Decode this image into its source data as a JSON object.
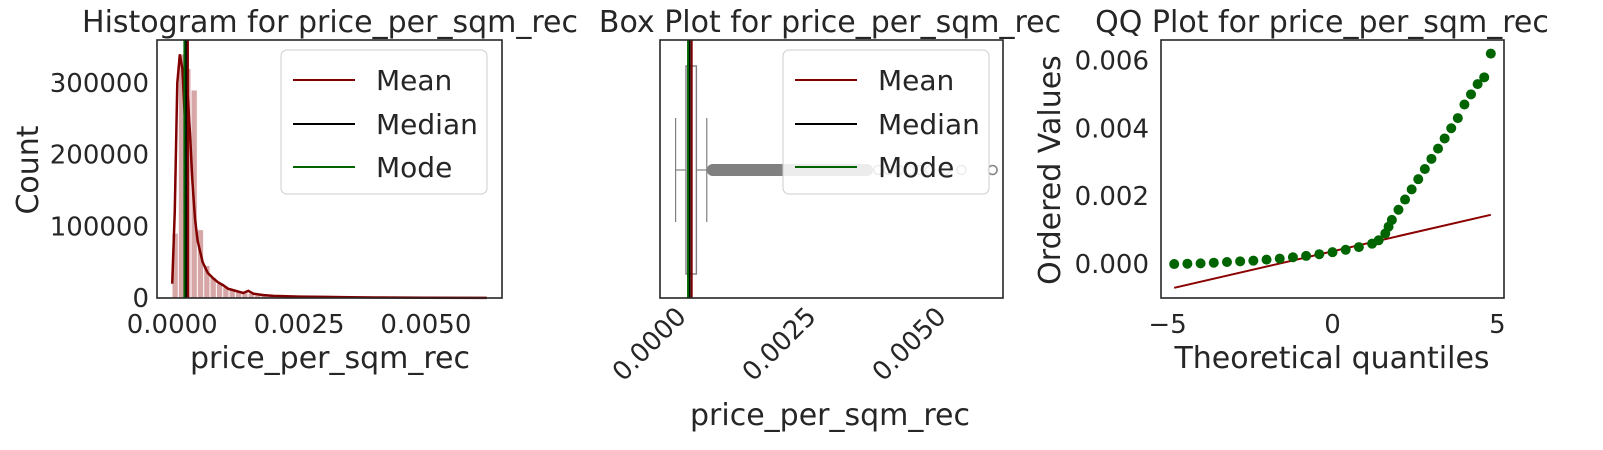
{
  "colors": {
    "mean": "#800000",
    "median": "#000000",
    "mode": "#006400",
    "hist_fill": "#c98a8a",
    "box_gray": "#808080",
    "qq_points": "#006400",
    "qq_line": "#8b0000"
  },
  "chart_data": [
    {
      "type": "histogram",
      "title": "Histogram for price_per_sqm_rec",
      "xlabel": "price_per_sqm_rec",
      "ylabel": "Count",
      "xlim": [
        -0.0003,
        0.0065
      ],
      "ylim": [
        0,
        360000
      ],
      "xticks": [
        0.0,
        0.0025,
        0.005
      ],
      "xtick_labels": [
        "0.0000",
        "0.0025",
        "0.0050"
      ],
      "yticks": [
        0,
        100000,
        200000,
        300000
      ],
      "ytick_labels": [
        "0",
        "100000",
        "200000",
        "300000"
      ],
      "bin_width": 0.000125,
      "bins_x": [
        0.0,
        0.000125,
        0.00025,
        0.000375,
        0.0005,
        0.000625,
        0.00075,
        0.000875,
        0.001,
        0.001125,
        0.00125,
        0.001375,
        0.0015,
        0.001625,
        0.00175,
        0.001875,
        0.002,
        0.00225,
        0.0025,
        0.003,
        0.0035,
        0.004,
        0.0045,
        0.005,
        0.0055,
        0.006
      ],
      "counts": [
        90000,
        340000,
        320000,
        290000,
        95000,
        45000,
        28000,
        20000,
        15000,
        12000,
        9000,
        7000,
        6500,
        4000,
        3000,
        2500,
        2000,
        1500,
        1200,
        900,
        700,
        500,
        400,
        300,
        200,
        100
      ],
      "kde_x": [
        0.0,
        5e-05,
        0.0001,
        0.00015,
        0.0002,
        0.00025,
        0.0003,
        0.00035,
        0.0004,
        0.00045,
        0.0005,
        0.0006,
        0.0007,
        0.0008,
        0.0009,
        0.001,
        0.0011,
        0.0012,
        0.0013,
        0.0014,
        0.0015,
        0.0016,
        0.0018,
        0.002,
        0.0025,
        0.003,
        0.0035,
        0.004,
        0.005,
        0.0062
      ],
      "kde_y": [
        20000,
        120000,
        300000,
        340000,
        320000,
        250000,
        290000,
        230000,
        160000,
        110000,
        80000,
        50000,
        35000,
        28000,
        22000,
        18000,
        13000,
        11000,
        9000,
        7000,
        10000,
        6000,
        4000,
        3000,
        2000,
        1500,
        1000,
        700,
        300,
        100
      ],
      "lines": {
        "mean": 0.00031,
        "median": 0.00027,
        "mode": 0.00024
      },
      "legend": [
        "Mean",
        "Median",
        "Mode"
      ],
      "legend_position": "upper right"
    },
    {
      "type": "box",
      "title": "Box Plot for price_per_sqm_rec",
      "xlabel": "price_per_sqm_rec",
      "xlim": [
        -0.0003,
        0.0063
      ],
      "xticks": [
        0.0,
        0.0025,
        0.005
      ],
      "xtick_labels": [
        "0.0000",
        "0.0025",
        "0.0050"
      ],
      "whisker_low": 0.0,
      "q1": 0.0002,
      "median": 0.00027,
      "q3": 0.0004,
      "whisker_high": 0.0006,
      "outlier_dense_range": [
        0.0006,
        0.0038
      ],
      "outliers_sparse": [
        0.0039,
        0.0041,
        0.0043,
        0.0045,
        0.0047,
        0.0049,
        0.0052,
        0.0055,
        0.0061
      ],
      "lines": {
        "mean": 0.00031,
        "median": 0.00027,
        "mode": 0.00024
      },
      "legend": [
        "Mean",
        "Median",
        "Mode"
      ],
      "legend_position": "upper right"
    },
    {
      "type": "scatter",
      "title": "QQ Plot for price_per_sqm_rec",
      "xlabel": "Theoretical quantiles",
      "ylabel": "Ordered Values",
      "xlim": [
        -5.2,
        5.2
      ],
      "ylim": [
        -0.001,
        0.0066
      ],
      "xticks": [
        -5,
        0,
        5
      ],
      "xtick_labels": [
        "−5",
        "0",
        "5"
      ],
      "yticks": [
        0.0,
        0.002,
        0.004,
        0.006
      ],
      "ytick_labels": [
        "0.000",
        "0.002",
        "0.004",
        "0.006"
      ],
      "qq_x": [
        -4.8,
        -4.4,
        -4.0,
        -3.6,
        -3.2,
        -2.8,
        -2.4,
        -2.0,
        -1.6,
        -1.2,
        -0.8,
        -0.4,
        0.0,
        0.4,
        0.8,
        1.2,
        1.4,
        1.6,
        1.7,
        1.8,
        2.0,
        2.2,
        2.4,
        2.6,
        2.8,
        3.0,
        3.2,
        3.4,
        3.6,
        3.8,
        4.0,
        4.2,
        4.4,
        4.6,
        4.8
      ],
      "qq_y": [
        0.0,
        1e-05,
        2e-05,
        4e-05,
        6e-05,
        8e-05,
        0.0001,
        0.00013,
        0.00016,
        0.0002,
        0.00024,
        0.00029,
        0.00035,
        0.00042,
        0.0005,
        0.0006,
        0.0007,
        0.0009,
        0.0011,
        0.0013,
        0.0016,
        0.0019,
        0.0022,
        0.0025,
        0.0028,
        0.0031,
        0.0034,
        0.0037,
        0.004,
        0.0043,
        0.0047,
        0.005,
        0.0053,
        0.0055,
        0.0062
      ],
      "fit_line": {
        "x": [
          -4.8,
          4.8
        ],
        "y": [
          -0.0007,
          0.00145
        ]
      }
    }
  ]
}
